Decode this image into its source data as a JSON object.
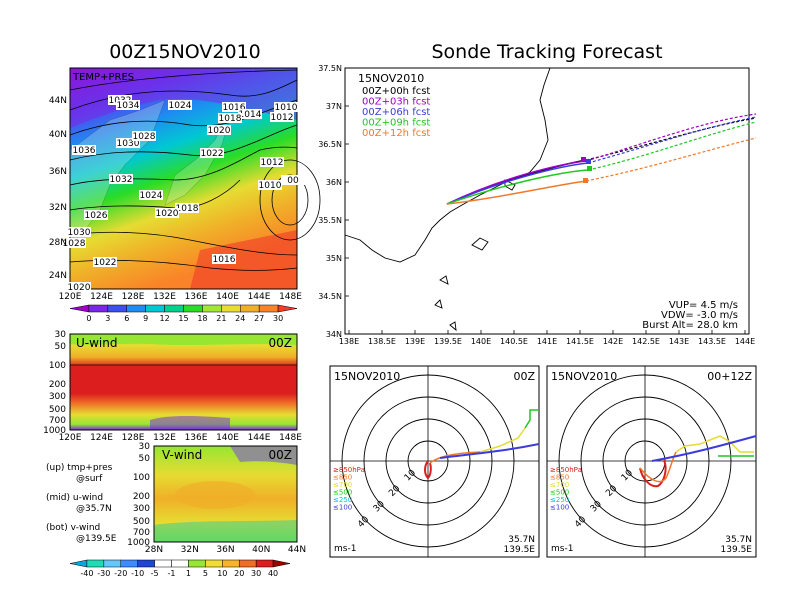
{
  "left_title": "00Z15NOV2010",
  "right_title": "Sonde Tracking Forecast",
  "map_panel": {
    "overlay_label": "TEMP+PRES",
    "xticks": [
      "120E",
      "124E",
      "128E",
      "132E",
      "136E",
      "140E",
      "144E",
      "148E"
    ],
    "yticks": [
      "24N",
      "28N",
      "32N",
      "36N",
      "40N",
      "44N"
    ],
    "isobar_labels": [
      "1032",
      "1034",
      "1024",
      "1016",
      "1014",
      "1010",
      "1012",
      "1018",
      "1036",
      "1030",
      "1028",
      "1020",
      "1022",
      "1012",
      "1032",
      "1010",
      "1024",
      "1018",
      "1026",
      "1020",
      "1030",
      "1028",
      "1022",
      "1016",
      "1020",
      "00"
    ],
    "colorbar_ticks": [
      "0",
      "3",
      "6",
      "9",
      "12",
      "15",
      "18",
      "21",
      "24",
      "27",
      "30"
    ],
    "colorbar_colors": [
      "#a000c8",
      "#7a28e6",
      "#3c50f0",
      "#1e8cf0",
      "#00c8d2",
      "#00d28c",
      "#28dc28",
      "#a0e632",
      "#e6dc32",
      "#f0af28",
      "#fa8228",
      "#f03c28"
    ]
  },
  "uwind_panel": {
    "title": "U-wind",
    "time": "00Z",
    "yticks": [
      "30",
      "50",
      "100",
      "200",
      "300",
      "500",
      "700",
      "1000"
    ],
    "xticks": [
      "120E",
      "124E",
      "128E",
      "132E",
      "136E",
      "140E",
      "144E",
      "148E"
    ]
  },
  "vwind_panel": {
    "title": "V-wind",
    "time": "00Z",
    "yticks": [
      "30",
      "50",
      "100",
      "200",
      "300",
      "500",
      "700",
      "1000"
    ],
    "xticks": [
      "28N",
      "32N",
      "36N",
      "40N",
      "44N"
    ]
  },
  "legend_notes": {
    "line1": "(up) tmp+pres",
    "line2": "@surf",
    "line3": "(mid) u-wind",
    "line4": "@35.7N",
    "line5": "(bot) v-wind",
    "line6": "@139.5E"
  },
  "wind_colorbar": {
    "ticks": [
      "-40",
      "-30",
      "-20",
      "-10",
      "-5",
      "-1",
      "1",
      "5",
      "10",
      "20",
      "30",
      "40"
    ],
    "colors": [
      "#00aadc",
      "#1edcb4",
      "#64c8ff",
      "#3c8cff",
      "#1e46d2",
      "#ffffff",
      "#ffffff",
      "#96e632",
      "#f0dc32",
      "#fab428",
      "#f06e28",
      "#dc1e1e",
      "#a00000"
    ]
  },
  "track_panel": {
    "date": "15NOV2010",
    "yticks": [
      "34N",
      "34.5N",
      "35N",
      "35.5N",
      "36N",
      "36.5N",
      "37N",
      "37.5N"
    ],
    "xticks": [
      "138E",
      "138.5E",
      "139E",
      "139.5E",
      "140E",
      "140.5E",
      "141E",
      "141.5E",
      "142E",
      "142.5E",
      "143E",
      "143.5E",
      "144E"
    ],
    "legend": [
      {
        "label": "00Z+00h fcst",
        "color": "#000000"
      },
      {
        "label": "00Z+03h fcst",
        "color": "#a000c8"
      },
      {
        "label": "00Z+06h fcst",
        "color": "#3c3cdc"
      },
      {
        "label": "00Z+09h fcst",
        "color": "#1ec81e"
      },
      {
        "label": "00Z+12h fcst",
        "color": "#f07828"
      }
    ],
    "vup": "VUP= 4.5 m/s",
    "vdw": "VDW= -3.0 m/s",
    "burst": "Burst Alt= 28.0 km"
  },
  "hodograph_left": {
    "date": "15NOV2010",
    "time": "00Z",
    "ring_labels": [
      "10",
      "20",
      "30",
      "40"
    ],
    "levels": [
      {
        "label": "≥850hPa",
        "color": "#dc1e1e"
      },
      {
        "label": "≤850",
        "color": "#f07828"
      },
      {
        "label": "≤700",
        "color": "#e6dc32"
      },
      {
        "label": "≤500",
        "color": "#1ec81e"
      },
      {
        "label": "≤250",
        "color": "#00c8d2"
      },
      {
        "label": "≤100",
        "color": "#3c3cdc"
      }
    ],
    "unit": "ms-1",
    "lat": "35.7N",
    "lon": "139.5E"
  },
  "hodograph_right": {
    "date": "15NOV2010",
    "time": "00+12Z",
    "ring_labels": [
      "10",
      "20",
      "30",
      "40"
    ],
    "levels": [
      {
        "label": "≥850hPa",
        "color": "#dc1e1e"
      },
      {
        "label": "≤850",
        "color": "#f07828"
      },
      {
        "label": "≤700",
        "color": "#e6dc32"
      },
      {
        "label": "≤500",
        "color": "#1ec81e"
      },
      {
        "label": "≤250",
        "color": "#00c8d2"
      },
      {
        "label": "≤100",
        "color": "#3c3cdc"
      }
    ],
    "unit": "ms-1",
    "lat": "35.7N",
    "lon": "139.5E"
  }
}
